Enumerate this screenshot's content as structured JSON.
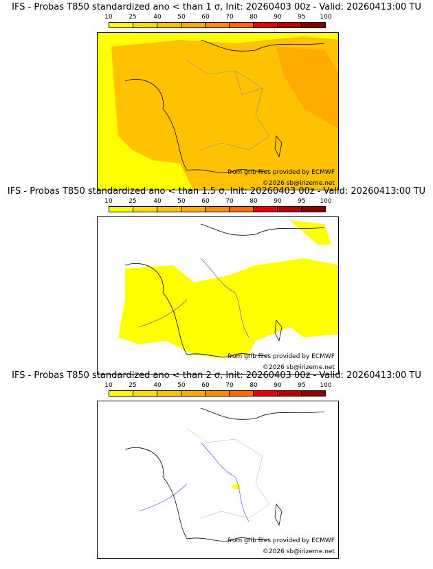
{
  "legend": {
    "ticks": [
      "10",
      "25",
      "40",
      "50",
      "60",
      "70",
      "80",
      "90",
      "95",
      "100"
    ],
    "colors": [
      "#ffff00",
      "#ffdd00",
      "#ffc200",
      "#ffaa00",
      "#ff8c00",
      "#ff6a00",
      "#e80000",
      "#b80000",
      "#8a0000",
      "#500000"
    ]
  },
  "panels": [
    {
      "title": "IFS - Probas T850  standardized ano < than 1 σ, Init: 20260403 00z - Valid: 20260413:00 TU"
    },
    {
      "title": "IFS - Probas T850  standardized ano < than 1.5 σ, Init: 20260403 00z - Valid: 20260413:00 TU"
    },
    {
      "title": "IFS - Probas T850  standardized ano < than 2 σ, Init: 20260403 00z - Valid: 20260413:00 TU"
    }
  ],
  "credits": {
    "source": "from grib files provided by ECMWF",
    "copyright": "©2026 sb@irizeme.net"
  }
}
